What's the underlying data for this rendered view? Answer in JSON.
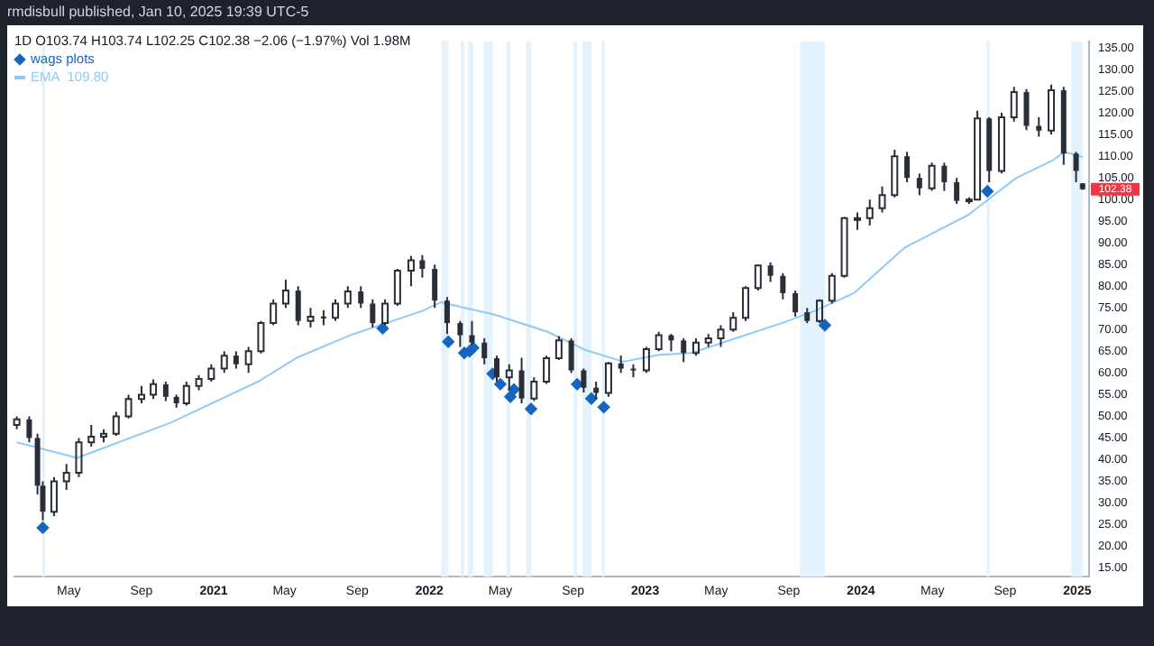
{
  "chart_data": {
    "type": "candlestick",
    "title": "1D  O103.74  H103.74  L102.25  C102.38  −2.06 (−1.97%)  Vol 1.98M",
    "subtitle": "rmdisbull published, Jan 10, 2025 19:39 UTC-5",
    "color": "#2a2e39",
    "x": [
      "2020-02-03",
      "2020-02-24",
      "2020-03-09",
      "2020-03-18",
      "2020-04-06",
      "2020-04-27",
      "2020-05-18",
      "2020-06-08",
      "2020-06-29",
      "2020-07-20",
      "2020-08-10",
      "2020-09-01",
      "2020-09-21",
      "2020-10-12",
      "2020-10-30",
      "2020-11-16",
      "2020-12-07",
      "2020-12-28",
      "2021-01-19",
      "2021-02-08",
      "2021-03-01",
      "2021-03-22",
      "2021-04-12",
      "2021-05-03",
      "2021-05-24",
      "2021-06-14",
      "2021-07-06",
      "2021-07-26",
      "2021-08-16",
      "2021-09-07",
      "2021-09-27",
      "2021-10-18",
      "2021-11-08",
      "2021-12-01",
      "2021-12-20",
      "2022-01-10",
      "2022-01-31",
      "2022-02-22",
      "2022-03-14",
      "2022-04-04",
      "2022-04-25",
      "2022-05-16",
      "2022-06-06",
      "2022-06-27",
      "2022-07-18",
      "2022-08-08",
      "2022-08-29",
      "2022-09-19",
      "2022-10-10",
      "2022-10-31",
      "2022-11-21",
      "2022-12-12",
      "2023-01-03",
      "2023-01-24",
      "2023-02-14",
      "2023-03-07",
      "2023-03-28",
      "2023-04-18",
      "2023-05-09",
      "2023-05-30",
      "2023-06-20",
      "2023-07-11",
      "2023-08-01",
      "2023-08-22",
      "2023-09-12",
      "2023-10-02",
      "2023-10-23",
      "2023-11-13",
      "2023-12-04",
      "2023-12-26",
      "2024-01-16",
      "2024-02-06",
      "2024-02-27",
      "2024-03-19",
      "2024-04-09",
      "2024-04-30",
      "2024-05-21",
      "2024-06-11",
      "2024-07-02",
      "2024-07-16",
      "2024-08-05",
      "2024-08-26",
      "2024-09-16",
      "2024-10-07",
      "2024-10-28",
      "2024-11-18",
      "2024-12-09",
      "2024-12-30",
      "2025-01-10"
    ],
    "ohlc": [
      [
        48,
        50,
        47,
        49.3
      ],
      [
        49.3,
        50,
        44,
        45
      ],
      [
        45,
        46,
        32,
        34
      ],
      [
        34,
        35,
        26,
        28
      ],
      [
        28,
        36,
        27,
        35
      ],
      [
        35,
        39,
        33,
        37
      ],
      [
        37,
        45,
        36,
        44
      ],
      [
        44,
        48,
        43,
        45.3
      ],
      [
        45.3,
        47,
        44,
        46
      ],
      [
        46,
        51,
        45.5,
        50
      ],
      [
        50,
        55,
        49.5,
        54
      ],
      [
        54,
        57,
        53,
        55
      ],
      [
        55,
        58.5,
        54,
        57.4
      ],
      [
        57.4,
        58,
        53.5,
        54.5
      ],
      [
        54.5,
        55,
        52,
        53
      ],
      [
        53,
        58,
        52.5,
        57
      ],
      [
        57,
        59.5,
        56,
        58.6
      ],
      [
        58.6,
        62,
        58,
        61
      ],
      [
        61,
        65,
        60,
        64
      ],
      [
        64,
        65,
        61,
        62
      ],
      [
        62,
        66,
        60,
        65
      ],
      [
        65,
        72,
        64.5,
        71.5
      ],
      [
        71.5,
        77,
        71,
        76
      ],
      [
        76,
        81.5,
        75,
        79
      ],
      [
        79,
        80,
        71,
        72
      ],
      [
        72,
        75,
        70.5,
        73
      ],
      [
        73,
        74.5,
        71,
        72.7
      ],
      [
        72.7,
        77,
        72,
        76
      ],
      [
        76,
        80,
        75,
        78.8
      ],
      [
        78.8,
        80,
        75,
        76
      ],
      [
        76,
        77,
        70.5,
        71.5
      ],
      [
        71.5,
        77,
        71,
        76
      ],
      [
        76,
        84,
        75.5,
        83.6
      ],
      [
        83.6,
        87,
        80,
        86
      ],
      [
        86,
        87.2,
        82,
        84
      ],
      [
        84,
        85,
        75,
        76.7
      ],
      [
        76.7,
        77.5,
        69,
        71.5
      ],
      [
        71.5,
        72,
        66,
        68.7
      ],
      [
        68.7,
        72,
        66.5,
        67
      ],
      [
        67,
        68,
        62,
        63.4
      ],
      [
        63.4,
        64,
        58,
        59
      ],
      [
        59,
        62,
        56,
        60.6
      ],
      [
        60.6,
        63.5,
        53,
        54.1
      ],
      [
        54.1,
        59,
        53.5,
        58
      ],
      [
        58,
        64,
        57.5,
        63.4
      ],
      [
        63.4,
        68.5,
        63,
        67.5
      ],
      [
        67.5,
        68,
        60,
        60.6
      ],
      [
        60.6,
        61,
        55.5,
        56.6
      ],
      [
        56.6,
        58,
        54,
        55.4
      ],
      [
        55.4,
        62.5,
        54.5,
        62.2
      ],
      [
        62.2,
        64,
        60,
        61
      ],
      [
        61,
        62,
        59,
        60.6
      ],
      [
        60.6,
        66,
        60,
        65.5
      ],
      [
        65.5,
        69.5,
        65,
        68.7
      ],
      [
        68.7,
        69,
        65,
        67.5
      ],
      [
        67.5,
        68,
        62.5,
        64.6
      ],
      [
        64.6,
        68,
        64,
        67
      ],
      [
        67,
        69,
        66,
        68
      ],
      [
        68,
        71,
        66,
        70
      ],
      [
        70,
        74,
        69.5,
        72.7
      ],
      [
        72.7,
        80,
        72,
        79.6
      ],
      [
        79.6,
        85,
        79,
        84.8
      ],
      [
        84.8,
        85.5,
        81,
        82.4
      ],
      [
        82.4,
        83,
        77,
        78.4
      ],
      [
        78.4,
        79,
        73,
        74
      ],
      [
        74,
        75,
        71.5,
        72
      ],
      [
        72,
        77,
        71.5,
        76.7
      ],
      [
        76.7,
        83,
        76,
        82.4
      ],
      [
        82.4,
        96,
        82,
        95.7
      ],
      [
        95.7,
        97,
        93,
        95.7
      ],
      [
        95.7,
        100,
        94,
        98
      ],
      [
        98,
        103,
        97,
        101
      ],
      [
        101,
        111.5,
        100.5,
        110
      ],
      [
        110,
        111,
        104,
        105
      ],
      [
        105,
        106,
        101,
        102.6
      ],
      [
        102.6,
        108.5,
        102,
        107.8
      ],
      [
        107.8,
        108.5,
        102,
        104
      ],
      [
        104,
        105,
        99,
        99.7
      ],
      [
        99.7,
        100.5,
        99,
        100
      ],
      [
        100,
        120.5,
        100,
        118.7
      ],
      [
        118.7,
        119,
        104,
        106.6
      ],
      [
        106.6,
        120,
        106,
        119
      ],
      [
        119,
        126,
        118,
        124.8
      ],
      [
        124.8,
        125.5,
        116,
        117
      ],
      [
        117,
        119,
        114.5,
        115.9
      ],
      [
        115.9,
        126.5,
        115,
        125.2
      ],
      [
        125.2,
        126,
        108,
        110.6
      ],
      [
        110.6,
        111,
        104,
        106.6
      ],
      [
        103.74,
        103.74,
        102.25,
        102.38
      ]
    ],
    "series": [
      {
        "name": "wags plots",
        "type": "scatter",
        "marker": "diamond",
        "color": "#1565c0",
        "x": [
          "2020-03-18",
          "2021-10-14",
          "2022-02-02",
          "2022-03-01",
          "2022-03-10",
          "2022-03-16",
          "2022-04-18",
          "2022-05-01",
          "2022-05-18",
          "2022-05-24",
          "2022-06-22",
          "2022-09-08",
          "2022-10-02",
          "2022-10-23",
          "2023-11-01",
          "2024-08-02"
        ],
        "values": [
          24.3,
          70.3,
          67.2,
          64.6,
          65,
          65.8,
          59.8,
          57.4,
          54.5,
          56.2,
          51.7,
          57.4,
          54.1,
          52.1,
          71,
          101.9
        ]
      },
      {
        "name": "EMA",
        "type": "line",
        "color": "#90caf9",
        "x": [
          "2020-02-03",
          "2020-05-15",
          "2020-10-20",
          "2021-03-20",
          "2021-05-20",
          "2021-08-20",
          "2021-10-20",
          "2021-12-20",
          "2022-01-20",
          "2022-04-20",
          "2022-07-20",
          "2022-09-20",
          "2022-11-25",
          "2023-01-25",
          "2023-03-20",
          "2023-06-10",
          "2023-08-20",
          "2023-10-15",
          "2023-12-20",
          "2024-03-15",
          "2024-07-01",
          "2024-09-20",
          "2024-11-20",
          "2024-12-10",
          "2025-01-10"
        ],
        "values": [
          44,
          40.4,
          48.5,
          58.2,
          63.4,
          68.7,
          71.5,
          74.3,
          76.3,
          73.5,
          69.5,
          65.4,
          62.6,
          64.2,
          64.6,
          68.3,
          71.5,
          74.3,
          78.4,
          88.9,
          96.5,
          105,
          109,
          111,
          109.8
        ]
      }
    ],
    "bands": [
      {
        "axis": "x",
        "from": "2020-03-17",
        "to": "2020-03-20",
        "color": "#e3f2fd"
      },
      {
        "axis": "x",
        "from": "2022-01-21",
        "to": "2022-02-02",
        "color": "#e3f2fd"
      },
      {
        "axis": "x",
        "from": "2022-02-23",
        "to": "2022-03-01",
        "color": "#e3f2fd"
      },
      {
        "axis": "x",
        "from": "2022-03-07",
        "to": "2022-03-16",
        "color": "#e3f2fd"
      },
      {
        "axis": "x",
        "from": "2022-04-03",
        "to": "2022-04-18",
        "color": "#e3f2fd"
      },
      {
        "axis": "x",
        "from": "2022-05-12",
        "to": "2022-05-18",
        "color": "#e3f2fd"
      },
      {
        "axis": "x",
        "from": "2022-06-14",
        "to": "2022-06-22",
        "color": "#e3f2fd"
      },
      {
        "axis": "x",
        "from": "2022-09-02",
        "to": "2022-09-08",
        "color": "#e3f2fd"
      },
      {
        "axis": "x",
        "from": "2022-09-17",
        "to": "2022-10-02",
        "color": "#e3f2fd"
      },
      {
        "axis": "x",
        "from": "2022-10-20",
        "to": "2022-10-23",
        "color": "#e3f2fd"
      },
      {
        "axis": "x",
        "from": "2023-09-20",
        "to": "2023-11-01",
        "color": "#e3f2fd"
      },
      {
        "axis": "x",
        "from": "2024-08-01",
        "to": "2024-08-05",
        "color": "#e3f2fd"
      },
      {
        "axis": "x",
        "from": "2024-12-22",
        "to": "2025-01-10",
        "color": "#e3f2fd"
      }
    ],
    "annotations": [
      "109.80",
      {
        "text": "102.38",
        "x": "2025-01-10",
        "y": 102.38
      }
    ],
    "legend": "top left",
    "xlim": [
      "2020-01-30",
      "2025-01-21"
    ],
    "xticks": [
      {
        "value": "2020-05-01",
        "label": "May"
      },
      {
        "value": "2020-09-01",
        "label": "Sep"
      },
      {
        "value": "2021-01-01",
        "label": "2021"
      },
      {
        "value": "2021-05-01",
        "label": "May"
      },
      {
        "value": "2021-09-01",
        "label": "Sep"
      },
      {
        "value": "2022-01-01",
        "label": "2022"
      },
      {
        "value": "2022-05-01",
        "label": "May"
      },
      {
        "value": "2022-09-01",
        "label": "Sep"
      },
      {
        "value": "2023-01-01",
        "label": "2023"
      },
      {
        "value": "2023-05-01",
        "label": "May"
      },
      {
        "value": "2023-09-01",
        "label": "Sep"
      },
      {
        "value": "2024-01-01",
        "label": "2024"
      },
      {
        "value": "2024-05-01",
        "label": "May"
      },
      {
        "value": "2024-09-01",
        "label": "Sep"
      },
      {
        "value": "2025-01-01",
        "label": "2025"
      }
    ],
    "ylim": [
      13,
      136.5
    ],
    "yticks": [
      {
        "value": 15,
        "label": "15.00"
      },
      {
        "value": 20,
        "label": "20.00"
      },
      {
        "value": 25,
        "label": "25.00"
      },
      {
        "value": 30,
        "label": "30.00"
      },
      {
        "value": 35,
        "label": "35.00"
      },
      {
        "value": 40,
        "label": "40.00"
      },
      {
        "value": 45,
        "label": "45.00"
      },
      {
        "value": 50,
        "label": "50.00"
      },
      {
        "value": 55,
        "label": "55.00"
      },
      {
        "value": 60,
        "label": "60.00"
      },
      {
        "value": 65,
        "label": "65.00"
      },
      {
        "value": 70,
        "label": "70.00"
      },
      {
        "value": 75,
        "label": "75.00"
      },
      {
        "value": 80,
        "label": "80.00"
      },
      {
        "value": 85,
        "label": "85.00"
      },
      {
        "value": 90,
        "label": "90.00"
      },
      {
        "value": 95,
        "label": "95.00"
      },
      {
        "value": 100,
        "label": "100.00"
      },
      {
        "value": 105,
        "label": "105.00"
      },
      {
        "value": 110,
        "label": "110.00"
      },
      {
        "value": 115,
        "label": "115.00"
      },
      {
        "value": 120,
        "label": "120.00"
      },
      {
        "value": 125,
        "label": "125.00"
      },
      {
        "value": 130,
        "label": "130.00"
      },
      {
        "value": 135,
        "label": "135.00"
      }
    ]
  }
}
